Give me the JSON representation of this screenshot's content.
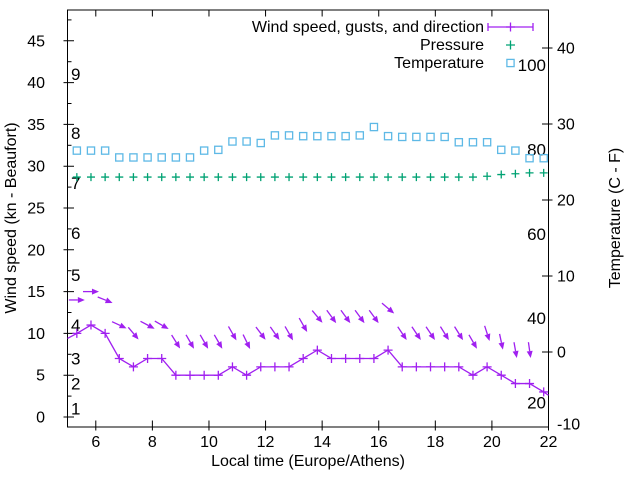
{
  "colors": {
    "background": "#ffffff",
    "axis": "#000000",
    "wind": "#a020f0",
    "pressure": "#00a273",
    "temperature": "#5eb9e6"
  },
  "legend": {
    "entries": [
      {
        "label": "Wind speed, gusts, and direction",
        "series": "wind",
        "marker": "line-plus",
        "color": "#a020f0"
      },
      {
        "label": "Pressure",
        "series": "pressure",
        "marker": "plus",
        "color": "#00a273"
      },
      {
        "label": "Temperature",
        "series": "temperature",
        "marker": "open-square",
        "color": "#5eb9e6"
      }
    ]
  },
  "chart_data": {
    "type": "line",
    "title": "",
    "xlabel": "Local time (Europe/Athens)",
    "ylabel": "Wind speed (kn - Beaufort)",
    "y2label": "Temperature (C - F)",
    "x_range": [
      5,
      22
    ],
    "x_ticks": [
      6,
      8,
      10,
      12,
      14,
      16,
      18,
      20,
      22
    ],
    "y_range": [
      -1.2,
      48.7
    ],
    "y_ticks": [
      0,
      5,
      10,
      15,
      20,
      25,
      30,
      35,
      40,
      45
    ],
    "y_minor_step": 2.5,
    "y2_range_c": [
      -10,
      44.8
    ],
    "y2_ticks_c": [
      -10,
      0,
      10,
      20,
      30,
      40
    ],
    "beaufort_scale": {
      "numbers": [
        1,
        2,
        3,
        4,
        5,
        6,
        7,
        8,
        9
      ],
      "knots": [
        1,
        4,
        7,
        11,
        17,
        22,
        28,
        34,
        41
      ]
    },
    "fahrenheit_inner_labels": [
      20,
      40,
      60,
      80,
      100
    ],
    "grid": false,
    "legend_position": "top-right-inside",
    "time_hours": [
      5.33,
      5.83,
      6.33,
      6.83,
      7.33,
      7.83,
      8.33,
      8.83,
      9.33,
      9.83,
      10.33,
      10.83,
      11.33,
      11.83,
      12.33,
      12.83,
      13.33,
      13.83,
      14.33,
      14.83,
      15.33,
      15.83,
      16.33,
      16.83,
      17.33,
      17.83,
      18.33,
      18.83,
      19.33,
      19.83,
      20.33,
      20.83,
      21.33,
      21.83
    ],
    "series": [
      {
        "name": "wind_speed_kn",
        "values": [
          10,
          11,
          10,
          7,
          6,
          7,
          7,
          5,
          5,
          5,
          5,
          6,
          5,
          6,
          6,
          6,
          7,
          8,
          7,
          7,
          7,
          7,
          8,
          6,
          6,
          6,
          6,
          6,
          5,
          6,
          5,
          4,
          4,
          3
        ]
      },
      {
        "name": "gust_kn",
        "values": [
          14,
          15,
          14,
          11,
          10,
          11,
          11,
          9,
          9,
          9,
          9,
          10,
          9,
          10,
          10,
          10,
          11,
          12,
          12,
          12,
          12,
          12,
          13,
          10,
          10,
          10,
          10,
          10,
          9,
          10,
          9,
          8,
          8,
          null
        ]
      },
      {
        "name": "wind_direction_screen_deg",
        "values": [
          0,
          0,
          22,
          25,
          50,
          28,
          30,
          58,
          60,
          60,
          60,
          60,
          64,
          53,
          55,
          60,
          60,
          50,
          54,
          54,
          54,
          54,
          40,
          56,
          56,
          56,
          58,
          58,
          60,
          72,
          78,
          80,
          82,
          null
        ]
      },
      {
        "name": "temperature_c",
        "values": [
          26.5,
          26.5,
          26.5,
          25.6,
          25.6,
          25.6,
          25.6,
          25.6,
          25.6,
          26.5,
          26.6,
          27.7,
          27.7,
          27.5,
          28.5,
          28.5,
          28.4,
          28.4,
          28.4,
          28.4,
          28.5,
          29.6,
          28.4,
          28.3,
          28.3,
          28.3,
          28.3,
          27.6,
          27.6,
          27.6,
          26.6,
          26.5,
          25.5,
          25.5
        ]
      },
      {
        "name": "pressure_level_on_kn_axis",
        "values": [
          28.7,
          28.7,
          28.7,
          28.7,
          28.7,
          28.7,
          28.7,
          28.7,
          28.7,
          28.7,
          28.7,
          28.7,
          28.7,
          28.7,
          28.7,
          28.7,
          28.7,
          28.7,
          28.7,
          28.7,
          28.7,
          28.7,
          28.7,
          28.7,
          28.7,
          28.7,
          28.7,
          28.7,
          28.7,
          28.8,
          29.0,
          29.1,
          29.2,
          29.2
        ]
      }
    ],
    "wind_line_edges": {
      "start": [
        5.0,
        9.4
      ],
      "end": [
        22.0,
        2.6
      ]
    }
  }
}
